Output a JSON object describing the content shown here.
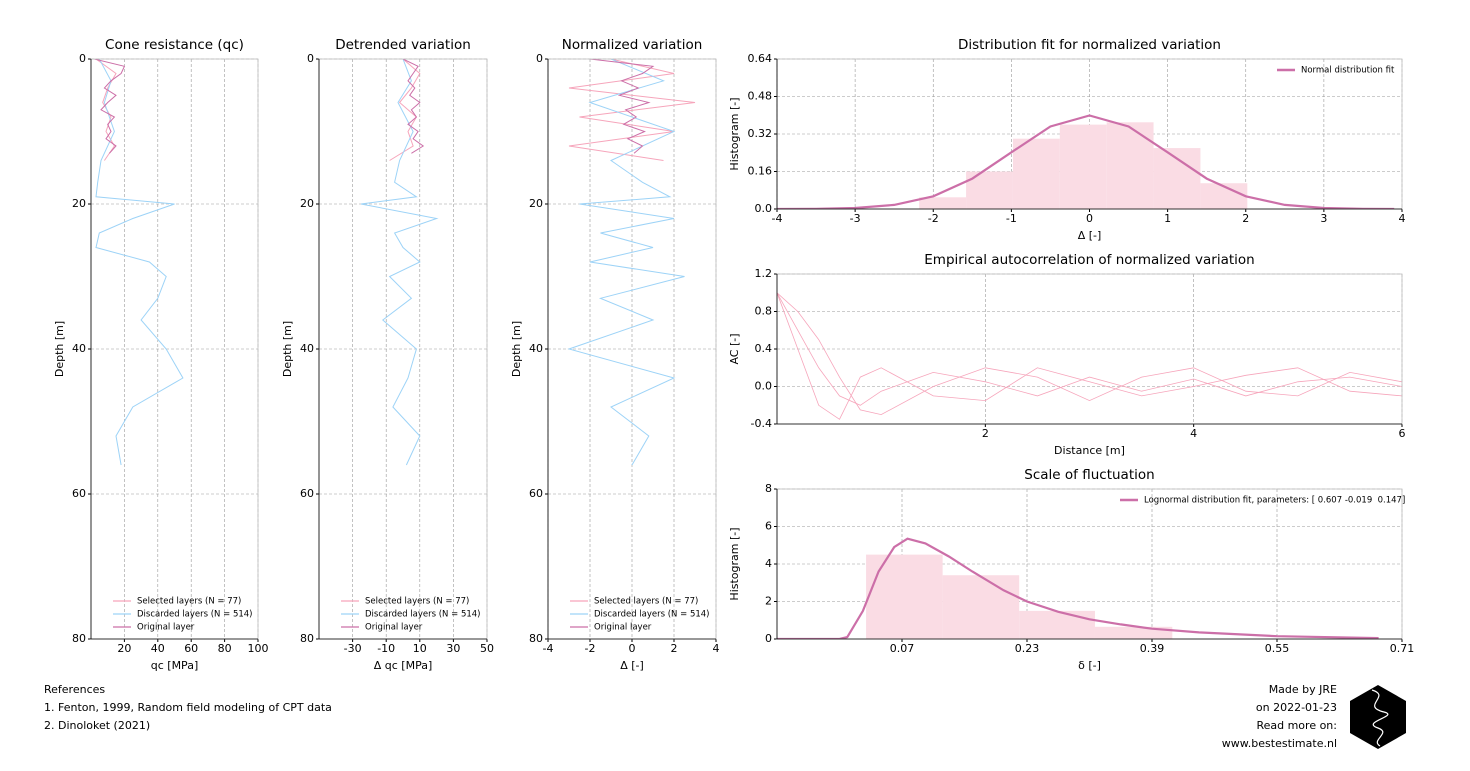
{
  "chart_data": [
    {
      "type": "line",
      "title": "Cone resistance (qc)",
      "xlabel": "qc [MPa]",
      "ylabel": "Depth [m]",
      "xlim": [
        0,
        100
      ],
      "xticks": [
        20,
        40,
        60,
        80,
        100
      ],
      "ylim": [
        0,
        80
      ],
      "yticks": [
        0,
        20,
        40,
        60,
        80
      ],
      "y_inverted": true,
      "grid": true,
      "legend": "lower center",
      "series": [
        {
          "name": "Selected layers (N = 77)",
          "color": "#f6a5bb",
          "depth": [
            0,
            2,
            4,
            6,
            8,
            10,
            12,
            14
          ],
          "values": [
            3,
            15,
            10,
            7,
            12,
            9,
            14,
            8
          ]
        },
        {
          "name": "Discarded layers (N = 514)",
          "color": "#9dd3f7",
          "depth": [
            0,
            3,
            6,
            10,
            14,
            17,
            19,
            20,
            22,
            24,
            26,
            28,
            30,
            33,
            36,
            40,
            44,
            48,
            52,
            56
          ],
          "values": [
            5,
            12,
            8,
            14,
            6,
            4,
            3,
            50,
            25,
            5,
            3,
            35,
            45,
            40,
            30,
            45,
            55,
            25,
            15,
            18
          ]
        },
        {
          "name": "Original layer",
          "color": "#cc6fa8",
          "depth": [
            0,
            1,
            2,
            3,
            4,
            5,
            6,
            7,
            8,
            9,
            10,
            11,
            12,
            13
          ],
          "values": [
            2,
            20,
            18,
            12,
            8,
            15,
            10,
            6,
            14,
            10,
            12,
            9,
            15,
            11
          ]
        }
      ]
    },
    {
      "type": "line",
      "title": "Detrended variation",
      "xlabel": "Δ qc [MPa]",
      "ylabel": "Depth [m]",
      "xlim": [
        -50,
        50
      ],
      "xticks": [
        -30,
        -10,
        10,
        30,
        50
      ],
      "ylim": [
        0,
        80
      ],
      "yticks": [
        0,
        20,
        40,
        60,
        80
      ],
      "y_inverted": true,
      "grid": true,
      "legend": "lower center",
      "series": [
        {
          "name": "Selected layers (N = 77)",
          "color": "#f6a5bb",
          "depth": [
            0,
            2,
            4,
            6,
            8,
            10,
            12,
            14
          ],
          "values": [
            0,
            10,
            5,
            -2,
            8,
            3,
            6,
            -8
          ]
        },
        {
          "name": "Discarded layers (N = 514)",
          "color": "#9dd3f7",
          "depth": [
            0,
            3,
            6,
            10,
            14,
            17,
            19,
            20,
            22,
            24,
            26,
            28,
            30,
            33,
            36,
            40,
            44,
            48,
            52,
            56
          ],
          "values": [
            0,
            5,
            -3,
            6,
            -2,
            -5,
            8,
            -25,
            20,
            -5,
            0,
            10,
            -8,
            5,
            -12,
            8,
            3,
            -6,
            10,
            2
          ]
        },
        {
          "name": "Original layer",
          "color": "#cc6fa8",
          "depth": [
            0,
            1,
            2,
            3,
            4,
            5,
            6,
            7,
            8,
            9,
            10,
            11,
            12,
            13
          ],
          "values": [
            0,
            9,
            6,
            3,
            7,
            4,
            10,
            5,
            8,
            3,
            9,
            6,
            12,
            5
          ]
        }
      ]
    },
    {
      "type": "line",
      "title": "Normalized variation",
      "xlabel": "Δ [-]",
      "ylabel": "Depth [m]",
      "xlim": [
        -4,
        4
      ],
      "xticks": [
        -4,
        -2,
        0,
        2,
        4
      ],
      "ylim": [
        0,
        80
      ],
      "yticks": [
        0,
        20,
        40,
        60,
        80
      ],
      "y_inverted": true,
      "grid": true,
      "legend": "lower center",
      "series": [
        {
          "name": "Selected layers (N = 77)",
          "color": "#f6a5bb",
          "depth": [
            0,
            2,
            4,
            6,
            8,
            10,
            12,
            14
          ],
          "values": [
            -1,
            2,
            -3,
            3,
            -2.5,
            2,
            -3,
            1.5
          ]
        },
        {
          "name": "Discarded layers (N = 514)",
          "color": "#9dd3f7",
          "depth": [
            0,
            3,
            6,
            10,
            14,
            17,
            19,
            20,
            22,
            24,
            26,
            28,
            30,
            33,
            36,
            40,
            44,
            48,
            52,
            56
          ],
          "values": [
            -1,
            1.5,
            -2,
            2,
            -1,
            0.5,
            1.8,
            -2.5,
            2,
            -1.5,
            1,
            -2,
            2.5,
            -1.5,
            1,
            -3,
            2,
            -1,
            0.8,
            0
          ]
        },
        {
          "name": "Original layer",
          "color": "#cc6fa8",
          "depth": [
            0,
            1,
            2,
            3,
            4,
            5,
            6,
            7,
            8,
            9,
            10,
            11,
            12,
            13
          ],
          "values": [
            -2,
            1,
            0.5,
            -0.5,
            0.3,
            -0.6,
            0.8,
            -0.3,
            0.2,
            -0.4,
            0.6,
            -0.2,
            0.5,
            0.1
          ]
        }
      ]
    },
    {
      "type": "histogram",
      "title": "Distribution fit for normalized variation",
      "xlabel": "Δ [-]",
      "ylabel": "Histogram [-]",
      "xlim": [
        -4,
        4
      ],
      "xticks": [
        -4,
        -3,
        -2,
        -1,
        0,
        1,
        2,
        3,
        4
      ],
      "ylim": [
        0,
        0.64
      ],
      "yticks": [
        {
          "value": 0,
          "label": "0.0"
        },
        0.16,
        0.32,
        0.48,
        0.64
      ],
      "grid": true,
      "legend": "upper right",
      "bar_color": "#fadce4",
      "bins": [
        -2.18,
        -1.58,
        -0.98,
        -0.38,
        0.22,
        0.82,
        1.42,
        2.02
      ],
      "counts": [
        0.05,
        0.16,
        0.3,
        0.36,
        0.37,
        0.26,
        0.11
      ],
      "series": [
        {
          "name": "Normal distribution fit",
          "color": "#cc6fa8",
          "x": [
            -4,
            -3.5,
            -3,
            -2.5,
            -2,
            -1.5,
            -1,
            -0.5,
            0,
            0.5,
            1,
            1.5,
            2,
            2.5,
            3,
            3.5,
            3.9
          ],
          "values": [
            0.0001,
            0.0009,
            0.0044,
            0.0175,
            0.054,
            0.1295,
            0.242,
            0.352,
            0.399,
            0.352,
            0.242,
            0.1295,
            0.054,
            0.0175,
            0.0044,
            0.0009,
            0.0002
          ]
        }
      ]
    },
    {
      "type": "line",
      "title": "Empirical autocorrelation of normalized variation",
      "xlabel": "Distance [m]",
      "ylabel": "AC [-]",
      "xlim": [
        0,
        6
      ],
      "xticks": [
        2,
        4,
        6
      ],
      "ylim": [
        -0.4,
        1.2
      ],
      "yticks": [
        -0.4,
        {
          "value": 0,
          "label": "0.0"
        },
        0.4,
        0.8,
        1.2
      ],
      "grid": true,
      "color": "#f6a5bb",
      "x": [
        0,
        0.2,
        0.4,
        0.6,
        0.8,
        1,
        1.5,
        2,
        2.5,
        3,
        3.5,
        4,
        4.5,
        5,
        5.5,
        6
      ],
      "series": [
        {
          "values": [
            1,
            0.6,
            0.2,
            -0.1,
            -0.2,
            -0.05,
            0.15,
            0.05,
            -0.1,
            0.1,
            -0.05,
            0.08,
            -0.1,
            0.05,
            0.1,
            0
          ]
        },
        {
          "values": [
            1,
            0.8,
            0.5,
            0.1,
            -0.25,
            -0.3,
            0,
            0.2,
            0.1,
            -0.15,
            0.1,
            0.2,
            -0.05,
            -0.1,
            0.15,
            0.05
          ]
        },
        {
          "values": [
            1,
            0.4,
            -0.2,
            -0.35,
            0.1,
            0.2,
            -0.1,
            -0.15,
            0.2,
            0.05,
            -0.1,
            0,
            0.12,
            0.2,
            -0.05,
            -0.1
          ]
        }
      ]
    },
    {
      "type": "histogram",
      "title": "Scale of fluctuation",
      "xlabel": "δ [-]",
      "ylabel": "Histogram [-]",
      "xlim": [
        -0.09,
        0.71
      ],
      "xticks": [
        0.07,
        0.23,
        0.39,
        0.55,
        0.71
      ],
      "ylim": [
        0,
        8
      ],
      "yticks": [
        0,
        2,
        4,
        6,
        8
      ],
      "grid": true,
      "legend": "upper right",
      "bar_color": "#fadce4",
      "bins": [
        0.024,
        0.122,
        0.22,
        0.317,
        0.416
      ],
      "counts": [
        4.5,
        3.4,
        1.5,
        0.65
      ],
      "series": [
        {
          "name": "Lognormal distribution fit, parameters: [ 0.607 -0.019  0.147]",
          "color": "#cc6fa8",
          "x": [
            -0.09,
            -0.01,
            0,
            0.02,
            0.04,
            0.06,
            0.077,
            0.1,
            0.13,
            0.16,
            0.2,
            0.23,
            0.27,
            0.31,
            0.35,
            0.39,
            0.45,
            0.55,
            0.68
          ],
          "values": [
            0,
            0,
            0.1,
            1.5,
            3.6,
            4.9,
            5.35,
            5.1,
            4.4,
            3.6,
            2.6,
            2,
            1.45,
            1.05,
            0.78,
            0.55,
            0.35,
            0.15,
            0.05
          ]
        }
      ]
    }
  ],
  "references": [
    "References",
    "1. Fenton, 1999, Random field modeling of CPT data",
    "2. Dinoloket (2021)"
  ],
  "credits": [
    "Made by JRE",
    "on 2022-01-23",
    "Read more on:",
    "www.bestestimate.nl"
  ]
}
